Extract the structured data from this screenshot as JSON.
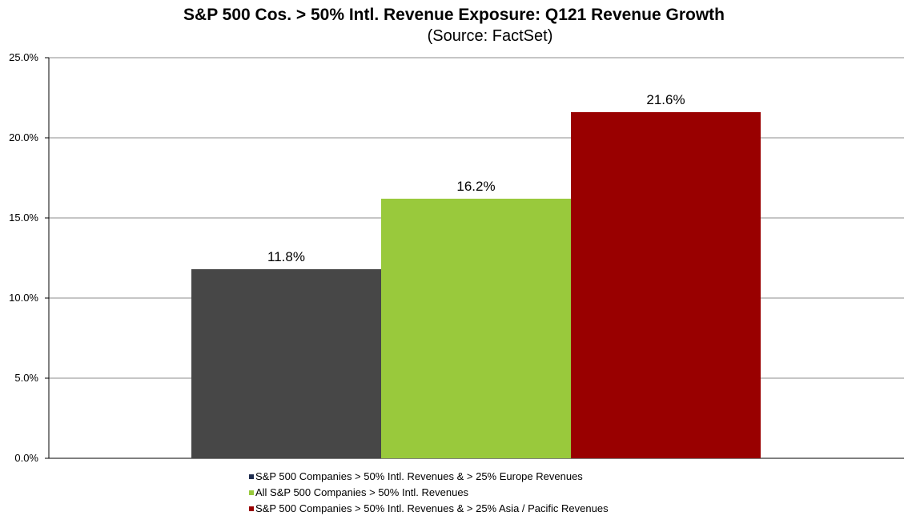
{
  "chart_data": {
    "type": "bar",
    "title": "S&P 500 Cos. > 50% Intl. Revenue Exposure: Q121 Revenue Growth",
    "subtitle": "(Source: FactSet)",
    "xlabel": "",
    "ylabel": "",
    "ylim": [
      0,
      25
    ],
    "yticks": [
      0,
      5,
      10,
      15,
      20,
      25
    ],
    "ytick_labels": [
      "0.0%",
      "5.0%",
      "10.0%",
      "15.0%",
      "20.0%",
      "25.0%"
    ],
    "grid": true,
    "legend_position": "bottom",
    "series": [
      {
        "name": "S&P 500 Companies > 50% Intl. Revenues & > 25% Europe Revenues",
        "value": 11.8,
        "label": "11.8%",
        "color": "#474747",
        "legend_color": "#1f2d4f"
      },
      {
        "name": "All S&P 500 Companies > 50% Intl. Revenues",
        "value": 16.2,
        "label": "16.2%",
        "color": "#99c93c",
        "legend_color": "#99c93c"
      },
      {
        "name": "S&P 500 Companies > 50% Intl. Revenues & > 25% Asia / Pacific Revenues",
        "value": 21.6,
        "label": "21.6%",
        "color": "#990000",
        "legend_color": "#990000"
      }
    ]
  }
}
